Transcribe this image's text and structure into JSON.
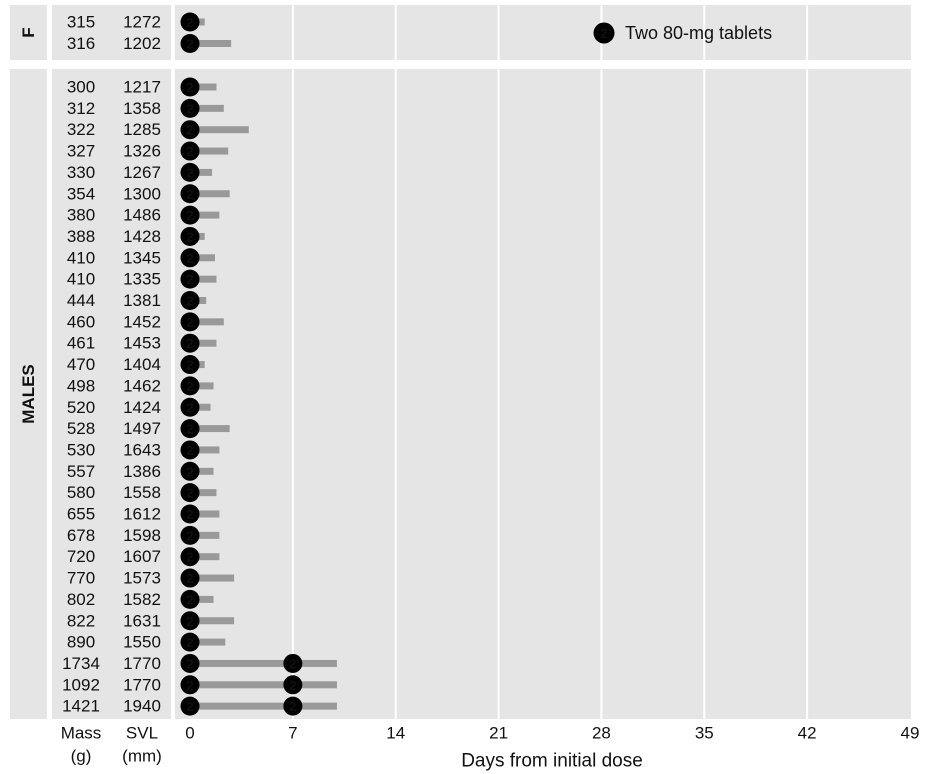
{
  "chart_data": {
    "type": "bar",
    "xlabel": "Days from initial dose",
    "xlim": [
      0,
      49
    ],
    "x_ticks": [
      "0",
      "7",
      "14",
      "21",
      "28",
      "35",
      "42",
      "49"
    ],
    "grid": true,
    "legend": {
      "placement": "top-right",
      "symbol": "2",
      "label": "Two 80-mg tablets"
    },
    "column_headers": {
      "mass_line1": "Mass",
      "mass_line2": "(g)",
      "svl_line1": "SVL",
      "svl_line2": "(mm)"
    },
    "groups": [
      {
        "label": "F",
        "rows": [
          {
            "mass": "315",
            "svl": "1272",
            "end_day": 1.0,
            "doses": [
              0
            ]
          },
          {
            "mass": "316",
            "svl": "1202",
            "end_day": 2.8,
            "doses": [
              0
            ]
          }
        ]
      },
      {
        "label": "MALES",
        "rows": [
          {
            "mass": "300",
            "svl": "1217",
            "end_day": 1.8,
            "doses": [
              0
            ]
          },
          {
            "mass": "312",
            "svl": "1358",
            "end_day": 2.3,
            "doses": [
              0
            ]
          },
          {
            "mass": "322",
            "svl": "1285",
            "end_day": 4.0,
            "doses": [
              0
            ]
          },
          {
            "mass": "327",
            "svl": "1326",
            "end_day": 2.6,
            "doses": [
              0
            ]
          },
          {
            "mass": "330",
            "svl": "1267",
            "end_day": 1.5,
            "doses": [
              0
            ]
          },
          {
            "mass": "354",
            "svl": "1300",
            "end_day": 2.7,
            "doses": [
              0
            ]
          },
          {
            "mass": "380",
            "svl": "1486",
            "end_day": 2.0,
            "doses": [
              0
            ]
          },
          {
            "mass": "388",
            "svl": "1428",
            "end_day": 1.0,
            "doses": [
              0
            ]
          },
          {
            "mass": "410",
            "svl": "1345",
            "end_day": 1.7,
            "doses": [
              0
            ]
          },
          {
            "mass": "410",
            "svl": "1335",
            "end_day": 1.8,
            "doses": [
              0
            ]
          },
          {
            "mass": "444",
            "svl": "1381",
            "end_day": 1.1,
            "doses": [
              0
            ]
          },
          {
            "mass": "460",
            "svl": "1452",
            "end_day": 2.3,
            "doses": [
              0
            ]
          },
          {
            "mass": "461",
            "svl": "1453",
            "end_day": 1.8,
            "doses": [
              0
            ]
          },
          {
            "mass": "470",
            "svl": "1404",
            "end_day": 1.0,
            "doses": [
              0
            ]
          },
          {
            "mass": "498",
            "svl": "1462",
            "end_day": 1.6,
            "doses": [
              0
            ]
          },
          {
            "mass": "520",
            "svl": "1424",
            "end_day": 1.4,
            "doses": [
              0
            ]
          },
          {
            "mass": "528",
            "svl": "1497",
            "end_day": 2.7,
            "doses": [
              0
            ]
          },
          {
            "mass": "530",
            "svl": "1643",
            "end_day": 2.0,
            "doses": [
              0
            ]
          },
          {
            "mass": "557",
            "svl": "1386",
            "end_day": 1.6,
            "doses": [
              0
            ]
          },
          {
            "mass": "580",
            "svl": "1558",
            "end_day": 1.8,
            "doses": [
              0
            ]
          },
          {
            "mass": "655",
            "svl": "1612",
            "end_day": 2.0,
            "doses": [
              0
            ]
          },
          {
            "mass": "678",
            "svl": "1598",
            "end_day": 2.0,
            "doses": [
              0
            ]
          },
          {
            "mass": "720",
            "svl": "1607",
            "end_day": 2.0,
            "doses": [
              0
            ]
          },
          {
            "mass": "770",
            "svl": "1573",
            "end_day": 3.0,
            "doses": [
              0
            ]
          },
          {
            "mass": "802",
            "svl": "1582",
            "end_day": 1.6,
            "doses": [
              0
            ]
          },
          {
            "mass": "822",
            "svl": "1631",
            "end_day": 3.0,
            "doses": [
              0
            ]
          },
          {
            "mass": "890",
            "svl": "1550",
            "end_day": 2.4,
            "doses": [
              0
            ]
          },
          {
            "mass": "1734",
            "svl": "1770",
            "end_day": 10.0,
            "doses": [
              0,
              7
            ]
          },
          {
            "mass": "1092",
            "svl": "1770",
            "end_day": 10.0,
            "doses": [
              0,
              7
            ]
          },
          {
            "mass": "1421",
            "svl": "1940",
            "end_day": 10.0,
            "doses": [
              0,
              7
            ]
          }
        ]
      }
    ]
  },
  "colors": {
    "panel_bg": "#e5e5e5",
    "grid": "#ffffff",
    "bar": "#999999",
    "marker": "#000000",
    "marker_text": "#ffffff",
    "text": "#111111"
  }
}
